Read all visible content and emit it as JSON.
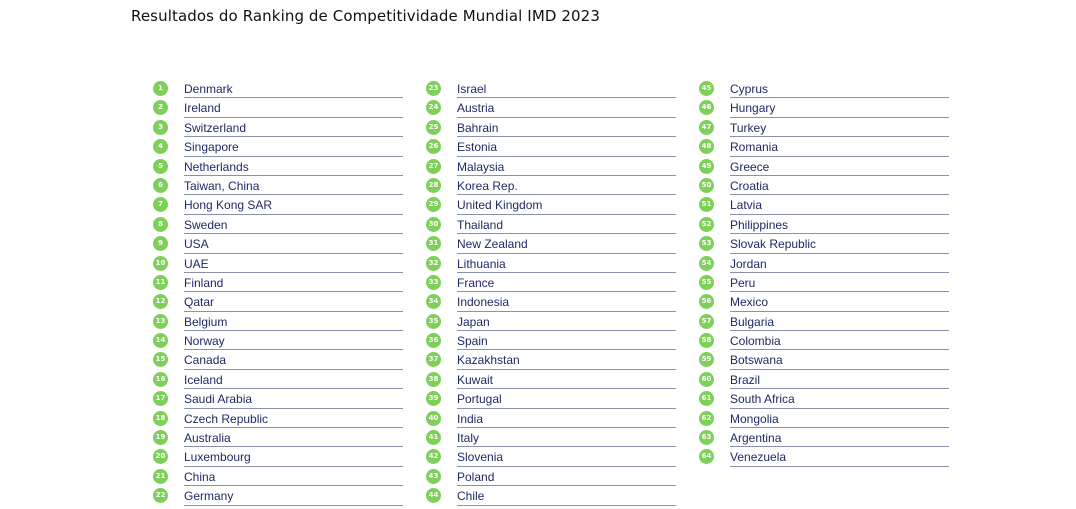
{
  "title": "Resultados do Ranking de Competitividade Mundial IMD 2023",
  "accent_color": "#7fd05a",
  "text_color": "#1e2a66",
  "columns": [
    {
      "entries": [
        {
          "rank": "1",
          "country": "Denmark"
        },
        {
          "rank": "2",
          "country": "Ireland"
        },
        {
          "rank": "3",
          "country": "Switzerland"
        },
        {
          "rank": "4",
          "country": "Singapore"
        },
        {
          "rank": "5",
          "country": "Netherlands"
        },
        {
          "rank": "6",
          "country": "Taiwan, China"
        },
        {
          "rank": "7",
          "country": "Hong Kong SAR"
        },
        {
          "rank": "8",
          "country": "Sweden"
        },
        {
          "rank": "9",
          "country": "USA"
        },
        {
          "rank": "10",
          "country": "UAE"
        },
        {
          "rank": "11",
          "country": "Finland"
        },
        {
          "rank": "12",
          "country": "Qatar"
        },
        {
          "rank": "13",
          "country": "Belgium"
        },
        {
          "rank": "14",
          "country": "Norway"
        },
        {
          "rank": "15",
          "country": "Canada"
        },
        {
          "rank": "16",
          "country": "Iceland"
        },
        {
          "rank": "17",
          "country": "Saudi Arabia"
        },
        {
          "rank": "18",
          "country": "Czech Republic"
        },
        {
          "rank": "19",
          "country": "Australia"
        },
        {
          "rank": "20",
          "country": "Luxembourg"
        },
        {
          "rank": "21",
          "country": "China"
        },
        {
          "rank": "22",
          "country": "Germany"
        }
      ]
    },
    {
      "entries": [
        {
          "rank": "23",
          "country": "Israel"
        },
        {
          "rank": "24",
          "country": "Austria"
        },
        {
          "rank": "25",
          "country": "Bahrain"
        },
        {
          "rank": "26",
          "country": "Estonia"
        },
        {
          "rank": "27",
          "country": "Malaysia"
        },
        {
          "rank": "28",
          "country": "Korea Rep."
        },
        {
          "rank": "29",
          "country": "United Kingdom"
        },
        {
          "rank": "30",
          "country": "Thailand"
        },
        {
          "rank": "31",
          "country": "New Zealand"
        },
        {
          "rank": "32",
          "country": "Lithuania"
        },
        {
          "rank": "33",
          "country": "France"
        },
        {
          "rank": "34",
          "country": "Indonesia"
        },
        {
          "rank": "35",
          "country": "Japan"
        },
        {
          "rank": "36",
          "country": "Spain"
        },
        {
          "rank": "37",
          "country": "Kazakhstan"
        },
        {
          "rank": "38",
          "country": "Kuwait"
        },
        {
          "rank": "39",
          "country": "Portugal"
        },
        {
          "rank": "40",
          "country": "India"
        },
        {
          "rank": "41",
          "country": "Italy"
        },
        {
          "rank": "42",
          "country": "Slovenia"
        },
        {
          "rank": "43",
          "country": "Poland"
        },
        {
          "rank": "44",
          "country": "Chile"
        }
      ]
    },
    {
      "entries": [
        {
          "rank": "45",
          "country": "Cyprus"
        },
        {
          "rank": "46",
          "country": "Hungary"
        },
        {
          "rank": "47",
          "country": "Turkey"
        },
        {
          "rank": "48",
          "country": "Romania"
        },
        {
          "rank": "49",
          "country": "Greece"
        },
        {
          "rank": "50",
          "country": "Croatia"
        },
        {
          "rank": "51",
          "country": "Latvia"
        },
        {
          "rank": "52",
          "country": "Philippines"
        },
        {
          "rank": "53",
          "country": "Slovak Republic"
        },
        {
          "rank": "54",
          "country": "Jordan"
        },
        {
          "rank": "55",
          "country": "Peru"
        },
        {
          "rank": "56",
          "country": "Mexico"
        },
        {
          "rank": "57",
          "country": "Bulgaria"
        },
        {
          "rank": "58",
          "country": "Colombia"
        },
        {
          "rank": "59",
          "country": "Botswana"
        },
        {
          "rank": "60",
          "country": "Brazil"
        },
        {
          "rank": "61",
          "country": "South Africa"
        },
        {
          "rank": "62",
          "country": "Mongolia"
        },
        {
          "rank": "63",
          "country": "Argentina"
        },
        {
          "rank": "64",
          "country": "Venezuela"
        }
      ]
    }
  ]
}
